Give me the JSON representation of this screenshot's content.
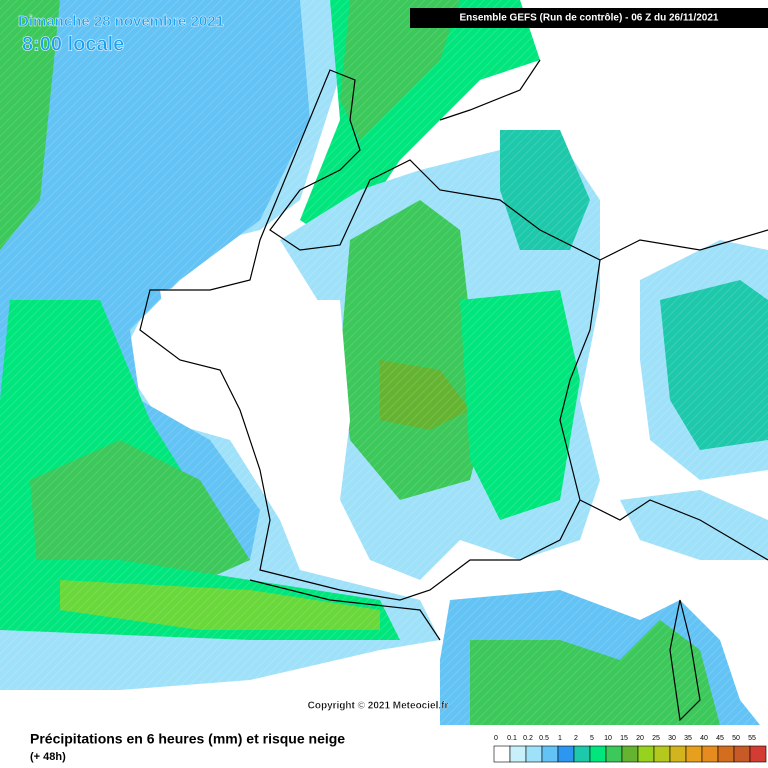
{
  "header": {
    "date": "Dimanche 28 novembre 2021",
    "time": "8:00 locale",
    "model": "Ensemble GEFS  (Run de contrôle)  -  06 Z du 26/11/2021"
  },
  "copyright": "Copyright © 2021 Meteociel.fr",
  "footer": {
    "title": "Précipitations en 6 heures (mm) et risque neige",
    "lead": "(+ 48h)"
  },
  "legend": {
    "labels": [
      "0",
      "0.1",
      "0.2",
      "0.5",
      "1",
      "2",
      "5",
      "10",
      "15",
      "20",
      "25",
      "30",
      "35",
      "40",
      "45",
      "50",
      "55"
    ],
    "colors": [
      "#ffffff",
      "#c8f0fa",
      "#a0e1fa",
      "#64c3f5",
      "#2d96f0",
      "#1ec8aa",
      "#00e67d",
      "#3cc85a",
      "#64b432",
      "#96d21e",
      "#b4c81e",
      "#d2b41e",
      "#e6a01e",
      "#e68c1e",
      "#d26e1e",
      "#c85a28",
      "#d23c32"
    ]
  }
}
